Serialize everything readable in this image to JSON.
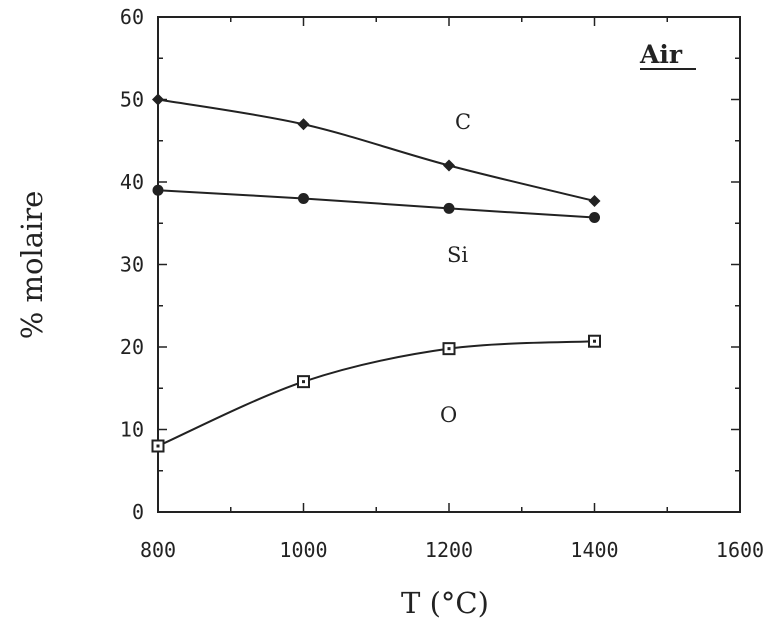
{
  "chart_data": {
    "type": "line",
    "xlabel": "T (°C)",
    "ylabel": "% molaire",
    "xlim": [
      800,
      1600
    ],
    "ylim": [
      0,
      60
    ],
    "xticks": [
      800,
      1000,
      1200,
      1400,
      1600
    ],
    "yticks": [
      0,
      10,
      20,
      30,
      40,
      50,
      60
    ],
    "xtick_labels": [
      "800",
      "1000",
      "1200",
      "1400",
      "1600"
    ],
    "ytick_labels": [
      "0",
      "10",
      "20",
      "30",
      "40",
      "50",
      "60"
    ],
    "annotation": "Air",
    "grid": false,
    "series": [
      {
        "name": "C",
        "marker": "diamond",
        "x": [
          800,
          1000,
          1200,
          1400
        ],
        "y": [
          50,
          47,
          42,
          37.7
        ]
      },
      {
        "name": "Si",
        "marker": "circle",
        "x": [
          800,
          1000,
          1200,
          1400
        ],
        "y": [
          39,
          38,
          36.8,
          35.7
        ]
      },
      {
        "name": "O",
        "marker": "square",
        "x": [
          800,
          1000,
          1200,
          1400
        ],
        "y": [
          8,
          15.8,
          19.8,
          20.7
        ]
      }
    ]
  }
}
